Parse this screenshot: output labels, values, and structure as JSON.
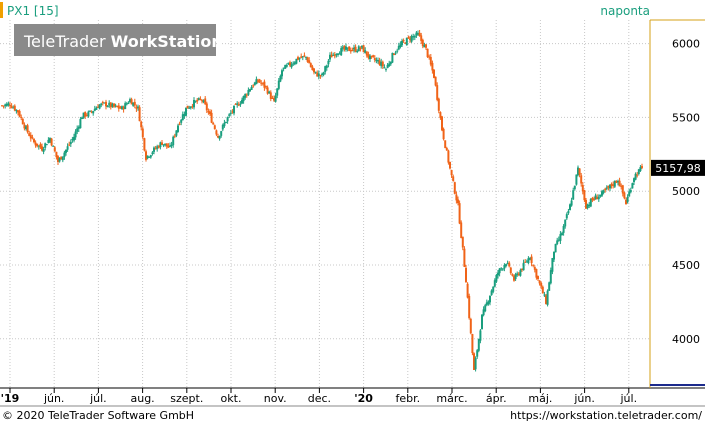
{
  "header": {
    "instrument": "PX1 [15]",
    "period": "naponta",
    "watermark_light": "TeleTrader",
    "watermark_bold": "WorkStation"
  },
  "footer": {
    "copyright": "© 2020 TeleTrader Software GmbH",
    "url": "https://workstation.teletrader.com/"
  },
  "colors": {
    "up": "#1a9e7e",
    "down": "#f06318",
    "accent": "#f0a000",
    "grid": "#c8c8c8",
    "last_bg": "#000000"
  },
  "chart_data": {
    "type": "candlestick",
    "y_ticks": [
      4000,
      4500,
      5000,
      5500,
      6000
    ],
    "y_tick_labels": [
      "4000",
      "4500",
      "5000",
      "5500",
      "6000"
    ],
    "ylim": [
      3680,
      6160
    ],
    "x_labels": [
      "'19",
      "jún.",
      "júl.",
      "aug.",
      "szept.",
      "okt.",
      "nov.",
      "dec.",
      "'20",
      "febr.",
      "márc.",
      "ápr.",
      "máj.",
      "jún.",
      "júl."
    ],
    "x_label_bold": [
      true,
      false,
      false,
      false,
      false,
      false,
      false,
      false,
      true,
      false,
      false,
      false,
      false,
      false,
      false
    ],
    "last_value": 5157.98,
    "last_label": "5157,98",
    "weekly_closes": [
      5580,
      5590,
      5540,
      5420,
      5330,
      5290,
      5360,
      5200,
      5280,
      5370,
      5510,
      5530,
      5580,
      5590,
      5570,
      5560,
      5620,
      5560,
      5230,
      5280,
      5330,
      5290,
      5450,
      5560,
      5600,
      5620,
      5510,
      5370,
      5480,
      5560,
      5620,
      5700,
      5750,
      5700,
      5600,
      5820,
      5860,
      5900,
      5910,
      5800,
      5780,
      5910,
      5950,
      5960,
      5960,
      5970,
      5900,
      5880,
      5830,
      5940,
      6000,
      6040,
      6060,
      5960,
      5780,
      5420,
      5150,
      4900,
      4400,
      3780,
      4150,
      4300,
      4450,
      4520,
      4400,
      4480,
      4560,
      4400,
      4250,
      4600,
      4720,
      4900,
      5150,
      4900,
      4950,
      4980,
      5030,
      5080,
      4920,
      5100,
      5158
    ]
  }
}
